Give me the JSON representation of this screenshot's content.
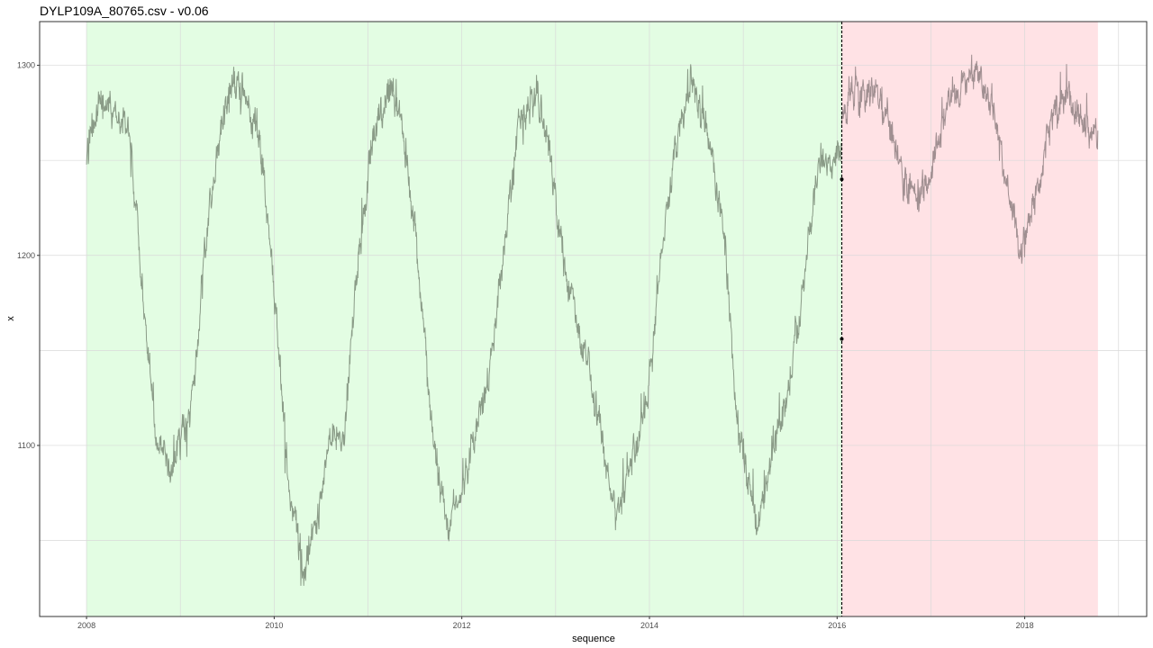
{
  "title": "DYLP109A_80765.csv - v0.06",
  "colors": {
    "train_region": "#e3fde3",
    "test_region": "#ffe2e5",
    "train_line": "#8a9b87",
    "test_line": "#a08f91",
    "grid": "#d9d9d9",
    "panel_border": "#333333",
    "split_line": "#000000"
  },
  "chart_data": {
    "type": "line",
    "title": "DYLP109A_80765.csv - v0.06",
    "xlabel": "sequence",
    "ylabel": "x",
    "xlim": [
      2007.5,
      2019.3
    ],
    "ylim": [
      1010,
      1323
    ],
    "x_ticks": [
      "2008",
      "2010",
      "2012",
      "2014",
      "2016",
      "2018"
    ],
    "y_ticks": [
      "1100",
      "1200",
      "1300"
    ],
    "grid": true,
    "regions": [
      {
        "role": "train",
        "x_start": 2008.0,
        "x_end": 2016.05
      },
      {
        "role": "test",
        "x_start": 2016.05,
        "x_end": 2018.78
      }
    ],
    "split_x": 2016.05,
    "split_markers": [
      {
        "x": 2016.05,
        "y": 1240
      },
      {
        "x": 2016.05,
        "y": 1156
      }
    ],
    "series": [
      {
        "role": "train",
        "x_start": 2008.0,
        "x_end": 2016.05,
        "keypoints": [
          [
            2008.0,
            1250
          ],
          [
            2008.05,
            1265
          ],
          [
            2008.15,
            1285
          ],
          [
            2008.3,
            1275
          ],
          [
            2008.45,
            1265
          ],
          [
            2008.6,
            1180
          ],
          [
            2008.75,
            1100
          ],
          [
            2008.9,
            1085
          ],
          [
            2009.05,
            1110
          ],
          [
            2009.15,
            1130
          ],
          [
            2009.25,
            1200
          ],
          [
            2009.4,
            1260
          ],
          [
            2009.55,
            1290
          ],
          [
            2009.7,
            1280
          ],
          [
            2009.85,
            1260
          ],
          [
            2010.0,
            1180
          ],
          [
            2010.15,
            1080
          ],
          [
            2010.3,
            1035
          ],
          [
            2010.45,
            1060
          ],
          [
            2010.6,
            1100
          ],
          [
            2010.75,
            1110
          ],
          [
            2010.9,
            1200
          ],
          [
            2011.05,
            1260
          ],
          [
            2011.2,
            1290
          ],
          [
            2011.35,
            1275
          ],
          [
            2011.5,
            1210
          ],
          [
            2011.7,
            1100
          ],
          [
            2011.85,
            1055
          ],
          [
            2012.0,
            1075
          ],
          [
            2012.15,
            1110
          ],
          [
            2012.3,
            1140
          ],
          [
            2012.45,
            1200
          ],
          [
            2012.6,
            1270
          ],
          [
            2012.8,
            1285
          ],
          [
            2012.95,
            1250
          ],
          [
            2013.1,
            1190
          ],
          [
            2013.3,
            1150
          ],
          [
            2013.5,
            1100
          ],
          [
            2013.65,
            1060
          ],
          [
            2013.8,
            1090
          ],
          [
            2013.95,
            1110
          ],
          [
            2014.1,
            1185
          ],
          [
            2014.25,
            1250
          ],
          [
            2014.45,
            1290
          ],
          [
            2014.6,
            1270
          ],
          [
            2014.8,
            1210
          ],
          [
            2014.95,
            1110
          ],
          [
            2015.15,
            1055
          ],
          [
            2015.3,
            1090
          ],
          [
            2015.45,
            1120
          ],
          [
            2015.6,
            1170
          ],
          [
            2015.8,
            1250
          ],
          [
            2015.95,
            1250
          ],
          [
            2016.05,
            1252
          ]
        ]
      },
      {
        "role": "test",
        "x_start": 2016.05,
        "x_end": 2018.78,
        "keypoints": [
          [
            2016.05,
            1275
          ],
          [
            2016.2,
            1290
          ],
          [
            2016.4,
            1283
          ],
          [
            2016.55,
            1270
          ],
          [
            2016.7,
            1240
          ],
          [
            2016.9,
            1230
          ],
          [
            2017.1,
            1265
          ],
          [
            2017.3,
            1290
          ],
          [
            2017.5,
            1295
          ],
          [
            2017.65,
            1280
          ],
          [
            2017.8,
            1240
          ],
          [
            2017.95,
            1205
          ],
          [
            2018.1,
            1225
          ],
          [
            2018.25,
            1265
          ],
          [
            2018.4,
            1283
          ],
          [
            2018.55,
            1280
          ],
          [
            2018.65,
            1265
          ],
          [
            2018.78,
            1265
          ]
        ]
      }
    ]
  }
}
